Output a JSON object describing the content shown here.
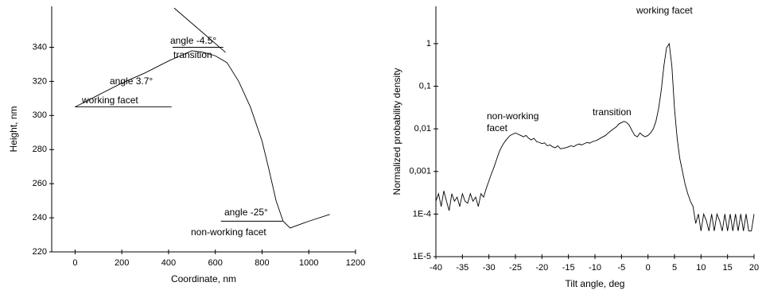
{
  "chart_data": [
    {
      "type": "line",
      "xlabel": "Coordinate, nm",
      "ylabel": "Height, nm",
      "xlim": [
        -100,
        1200
      ],
      "xticks": [
        0,
        200,
        400,
        600,
        800,
        1000,
        1200
      ],
      "ylim": [
        220,
        364
      ],
      "yticks": [
        220,
        240,
        260,
        280,
        300,
        320,
        340
      ],
      "series": [
        {
          "color": "#000000",
          "x": [
            0,
            100,
            200,
            300,
            400,
            450,
            500,
            550,
            600,
            650,
            700,
            750,
            800,
            830,
            860,
            890,
            920,
            1000,
            1090
          ],
          "values": [
            305,
            312,
            319,
            325,
            332,
            335,
            338,
            337,
            335,
            331,
            320,
            305,
            285,
            268,
            250,
            238,
            234,
            238,
            242
          ]
        },
        {
          "color": "#000000",
          "x": [
            424,
            644
          ],
          "values": [
            363,
            337
          ]
        },
        {
          "color": "#000000",
          "x": [
            0,
            413
          ],
          "values": [
            305,
            305
          ]
        },
        {
          "color": "#000000",
          "x": [
            417,
            634
          ],
          "values": [
            340,
            340
          ]
        },
        {
          "color": "#000000",
          "x": [
            624,
            888
          ],
          "values": [
            238,
            238
          ]
        }
      ],
      "annotations": [
        "angle 3.7°",
        "working facet",
        "angle -4.5°",
        "transition",
        "angle -25°",
        "non-working facet"
      ]
    },
    {
      "type": "line",
      "xlabel": "Tilt angle, deg",
      "ylabel": "Normalized probability density",
      "log_y": true,
      "xlim": [
        -40,
        20
      ],
      "xticks": [
        -40,
        -35,
        -30,
        -25,
        -20,
        -15,
        -10,
        -5,
        0,
        5,
        10,
        15,
        20
      ],
      "ylim": [
        1e-05,
        7.5
      ],
      "yticks": [
        {
          "value": 1e-05,
          "label": "1E-5"
        },
        {
          "value": 0.0001,
          "label": "1E-4"
        },
        {
          "value": 0.001,
          "label": "0,001"
        },
        {
          "value": 0.01,
          "label": "0,01"
        },
        {
          "value": 0.1,
          "label": "0,1"
        },
        1
      ],
      "series": [
        {
          "color": "#000000",
          "x": [
            -40,
            -39.5,
            -39,
            -38.5,
            -38,
            -37.5,
            -37,
            -36.5,
            -36,
            -35.5,
            -35,
            -34.5,
            -34,
            -33.5,
            -33,
            -32.5,
            -32,
            -31.5,
            -31,
            -30.5,
            -30,
            -29.5,
            -29,
            -28.5,
            -28,
            -27.5,
            -27,
            -26.5,
            -26,
            -25.5,
            -25,
            -24.5,
            -24,
            -23.5,
            -23,
            -22.5,
            -22,
            -21.5,
            -21,
            -20.5,
            -20,
            -19.5,
            -19,
            -18.5,
            -18,
            -17.5,
            -17,
            -16.5,
            -16,
            -15.5,
            -15,
            -14.5,
            -14,
            -13.5,
            -13,
            -12.5,
            -12,
            -11.5,
            -11,
            -10.5,
            -10,
            -9.5,
            -9,
            -8.5,
            -8,
            -7.5,
            -7,
            -6.5,
            -6,
            -5.5,
            -5,
            -4.5,
            -4,
            -3.5,
            -3,
            -2.5,
            -2,
            -1.5,
            -1,
            -0.5,
            0,
            0.5,
            1,
            1.5,
            2,
            2.5,
            3,
            3.5,
            4,
            4.5,
            5,
            5.5,
            6,
            6.5,
            7,
            7.5,
            8,
            8.5,
            9,
            9.5,
            10,
            10.5,
            11,
            11.5,
            12,
            12.5,
            13,
            13.5,
            14,
            14.5,
            15,
            15.5,
            16,
            16.5,
            17,
            17.5,
            18,
            18.5,
            19,
            19.5,
            20
          ],
          "values": [
            0.0002,
            0.0003,
            0.00015,
            0.00035,
            0.0002,
            0.00012,
            0.0003,
            0.0002,
            0.00025,
            0.00015,
            0.0003,
            0.0002,
            0.00018,
            0.0003,
            0.0002,
            0.00025,
            0.00015,
            0.0003,
            0.00025,
            0.0004,
            0.0006,
            0.0009,
            0.0013,
            0.002,
            0.003,
            0.004,
            0.005,
            0.006,
            0.007,
            0.0075,
            0.008,
            0.0075,
            0.007,
            0.0065,
            0.007,
            0.006,
            0.0055,
            0.006,
            0.005,
            0.0048,
            0.0045,
            0.0047,
            0.004,
            0.0042,
            0.0038,
            0.0036,
            0.004,
            0.0034,
            0.0035,
            0.0036,
            0.0038,
            0.004,
            0.0038,
            0.0042,
            0.0044,
            0.0042,
            0.0045,
            0.0048,
            0.0046,
            0.005,
            0.0052,
            0.0055,
            0.006,
            0.0065,
            0.007,
            0.008,
            0.009,
            0.01,
            0.011,
            0.013,
            0.014,
            0.015,
            0.014,
            0.012,
            0.009,
            0.007,
            0.0065,
            0.008,
            0.007,
            0.0065,
            0.007,
            0.008,
            0.01,
            0.015,
            0.03,
            0.08,
            0.3,
            0.8,
            1,
            0.3,
            0.03,
            0.006,
            0.002,
            0.001,
            0.0005,
            0.0003,
            0.0002,
            0.00015,
            6e-05,
            0.0001,
            4e-05,
            0.0001,
            7e-05,
            4e-05,
            0.0001,
            4e-05,
            0.0001,
            7e-05,
            4e-05,
            0.0001,
            4e-05,
            0.0001,
            4e-05,
            0.0001,
            4e-05,
            0.0001,
            4e-05,
            0.0001,
            4e-05,
            4e-05,
            0.0001
          ]
        }
      ],
      "annotations": [
        "non-working",
        "facet",
        "transition",
        "working facet"
      ]
    }
  ]
}
